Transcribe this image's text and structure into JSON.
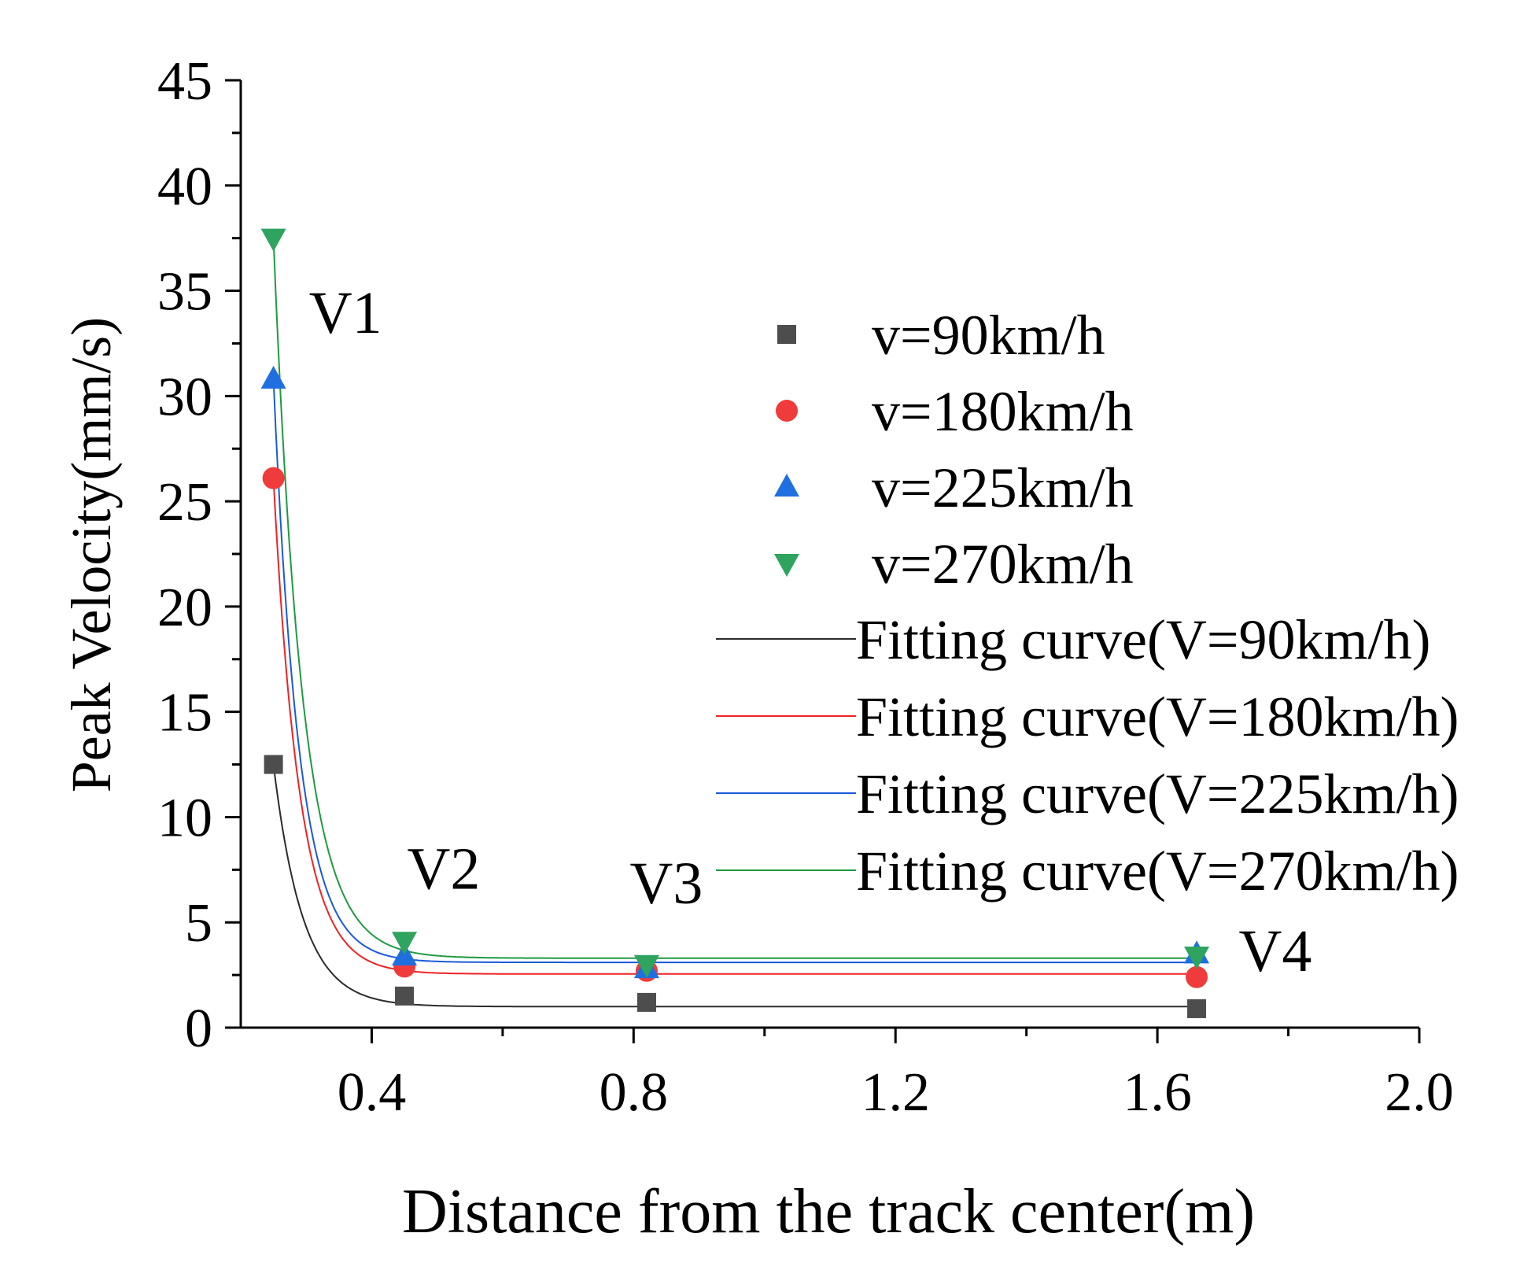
{
  "chart_data": {
    "type": "scatter",
    "title": "",
    "xlabel": "Distance from the track center(m)",
    "ylabel": "Peak Velocity(mm/s)",
    "xlim": [
      0.2,
      2.0
    ],
    "ylim": [
      0,
      45
    ],
    "x_major_ticks": [
      0.4,
      0.8,
      1.2,
      1.6,
      2.0
    ],
    "x_tick_labels": [
      "0.4",
      "0.8",
      "1.2",
      "1.6",
      "2.0"
    ],
    "x_minor_ticks": [
      0.6,
      1.0,
      1.4,
      1.8
    ],
    "y_major_ticks": [
      0,
      5,
      10,
      15,
      20,
      25,
      30,
      35,
      40,
      45
    ],
    "y_tick_labels": [
      "0",
      "5",
      "10",
      "15",
      "20",
      "25",
      "30",
      "35",
      "40",
      "45"
    ],
    "grid": false,
    "legend_position": "right",
    "x": [
      0.25,
      0.45,
      0.82,
      1.66
    ],
    "series": [
      {
        "name": "v=90km/h",
        "marker": "square",
        "color": "#4d4d4d",
        "values": [
          12.5,
          1.5,
          1.2,
          0.9
        ],
        "fit": {
          "label": "Fitting curve(V=90km/h)",
          "color": "#2b2b2b",
          "y0": 1.0,
          "A": 11.5,
          "tau": 0.045
        }
      },
      {
        "name": "v=180km/h",
        "marker": "circle",
        "color": "#ef3b3b",
        "values": [
          26.1,
          2.9,
          2.7,
          2.4
        ],
        "fit": {
          "label": "Fitting curve(V=180km/h)",
          "color": "#ee2222",
          "y0": 2.55,
          "A": 23.5,
          "tau": 0.04
        }
      },
      {
        "name": "v=225km/h",
        "marker": "triangle-up",
        "color": "#1f6fe0",
        "values": [
          30.8,
          3.4,
          2.8,
          3.5
        ],
        "fit": {
          "label": "Fitting curve(V=225km/h)",
          "color": "#1a5ad8",
          "y0": 3.1,
          "A": 27.7,
          "tau": 0.039
        }
      },
      {
        "name": "v=270km/h",
        "marker": "triangle-down",
        "color": "#2ea45f",
        "values": [
          37.5,
          4.1,
          3.0,
          3.4
        ],
        "fit": {
          "label": "Fitting curve(V=270km/h)",
          "color": "#1f9a40",
          "y0": 3.3,
          "A": 34.2,
          "tau": 0.044
        }
      }
    ],
    "annotations": [
      {
        "text": "V1",
        "x": 0.36,
        "y": 33.0
      },
      {
        "text": "V2",
        "x": 0.51,
        "y": 6.6
      },
      {
        "text": "V3",
        "x": 0.85,
        "y": 5.9
      },
      {
        "text": "V4",
        "x": 1.78,
        "y": 2.7
      }
    ]
  }
}
